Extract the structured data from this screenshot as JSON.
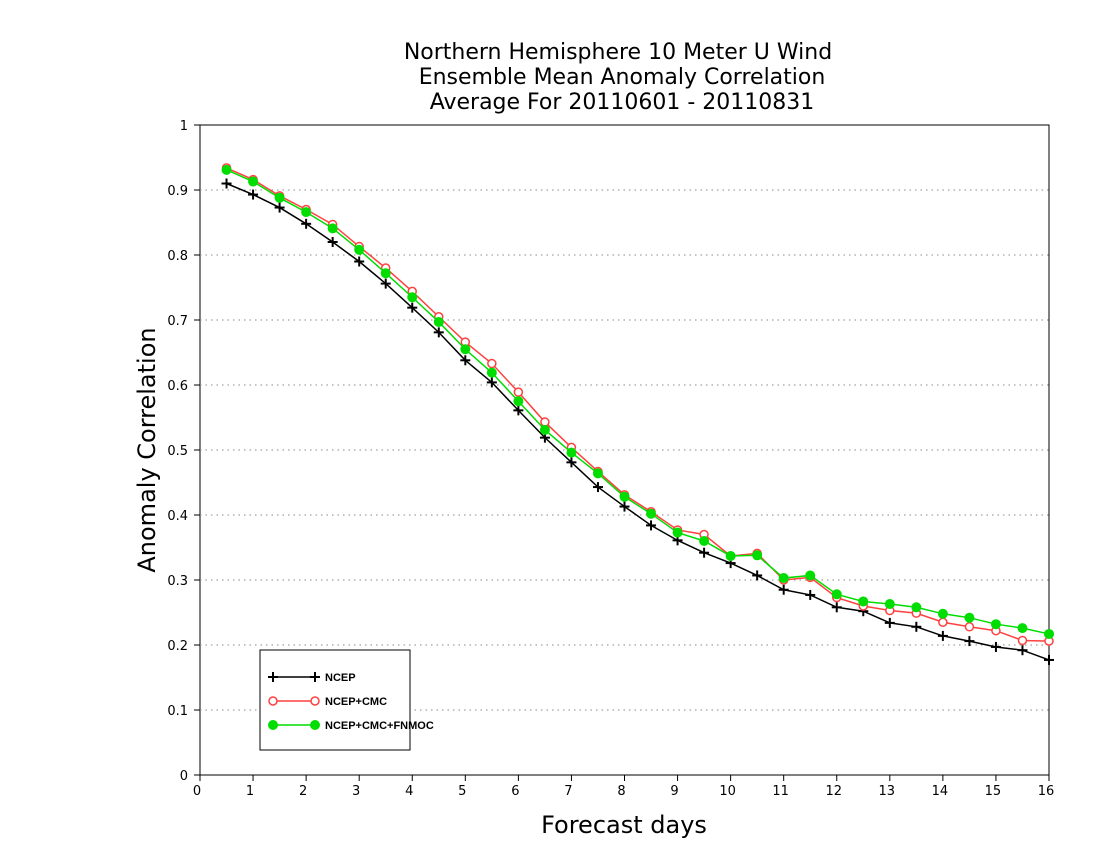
{
  "chart_data": {
    "type": "line",
    "title": [
      "Northern Hemisphere 10 Meter U Wind",
      "Ensemble Mean Anomaly Correlation",
      "Average For 20110601 - 20110831"
    ],
    "xlabel": "Forecast days",
    "ylabel": "Anomaly Correlation",
    "xlim": [
      0,
      16
    ],
    "ylim": [
      0,
      1
    ],
    "x_ticks": [
      "0",
      "1",
      "2",
      "3",
      "4",
      "5",
      "6",
      "7",
      "8",
      "9",
      "10",
      "11",
      "12",
      "13",
      "14",
      "15",
      "16"
    ],
    "y_ticks": [
      "0",
      "0.1",
      "0.2",
      "0.3",
      "0.4",
      "0.5",
      "0.6",
      "0.7",
      "0.8",
      "0.9",
      "1"
    ],
    "grid": "horizontal dotted",
    "legend_position": "bottom-left",
    "x": [
      0.5,
      1,
      1.5,
      2,
      2.5,
      3,
      3.5,
      4,
      4.5,
      5,
      5.5,
      6,
      6.5,
      7,
      7.5,
      8,
      8.5,
      9,
      9.5,
      10,
      10.5,
      11,
      11.5,
      12,
      12.5,
      13,
      13.5,
      14,
      14.5,
      15,
      15.5,
      16
    ],
    "series": [
      {
        "name": "NCEP",
        "color": "#000000",
        "marker": "plus",
        "values": [
          0.91,
          0.893,
          0.873,
          0.848,
          0.82,
          0.79,
          0.756,
          0.719,
          0.681,
          0.638,
          0.604,
          0.561,
          0.519,
          0.481,
          0.443,
          0.413,
          0.384,
          0.361,
          0.342,
          0.326,
          0.307,
          0.285,
          0.277,
          0.258,
          0.252,
          0.234,
          0.228,
          0.214,
          0.206,
          0.197,
          0.192,
          0.177
        ]
      },
      {
        "name": "NCEP+CMC",
        "color": "#ff4040",
        "marker": "open-circle",
        "values": [
          0.934,
          0.916,
          0.891,
          0.87,
          0.847,
          0.813,
          0.78,
          0.744,
          0.705,
          0.666,
          0.633,
          0.589,
          0.543,
          0.504,
          0.467,
          0.431,
          0.405,
          0.377,
          0.37,
          0.337,
          0.341,
          0.3,
          0.304,
          0.273,
          0.26,
          0.253,
          0.249,
          0.235,
          0.228,
          0.222,
          0.207,
          0.206
        ]
      },
      {
        "name": "NCEP+CMC+FNMOC",
        "color": "#00dd00",
        "marker": "filled-circle",
        "values": [
          0.931,
          0.913,
          0.888,
          0.866,
          0.841,
          0.808,
          0.772,
          0.735,
          0.697,
          0.655,
          0.619,
          0.575,
          0.531,
          0.496,
          0.464,
          0.428,
          0.402,
          0.373,
          0.36,
          0.337,
          0.338,
          0.303,
          0.307,
          0.278,
          0.267,
          0.263,
          0.258,
          0.248,
          0.242,
          0.232,
          0.226,
          0.217
        ]
      }
    ]
  }
}
